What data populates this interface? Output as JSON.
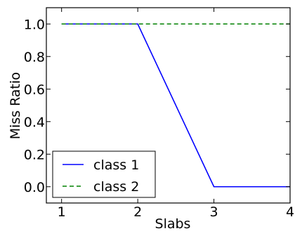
{
  "chart_data": {
    "type": "line",
    "title": "",
    "xlabel": "Slabs",
    "ylabel": "Miss Ratio",
    "xlim": [
      0.8,
      4.0
    ],
    "ylim": [
      -0.1,
      1.1
    ],
    "xticks": [
      1,
      2,
      3,
      4
    ],
    "xtick_labels": [
      "1",
      "2",
      "3",
      "4"
    ],
    "yticks": [
      0.0,
      0.2,
      0.4,
      0.6,
      0.8,
      1.0
    ],
    "ytick_labels": [
      "0.0",
      "0.2",
      "0.4",
      "0.6",
      "0.8",
      "1.0"
    ],
    "grid": false,
    "legend_position": "lower-left",
    "series": [
      {
        "name": "class 1",
        "color": "#0000ff",
        "style": "solid",
        "x": [
          1,
          2,
          3,
          4
        ],
        "values": [
          1.0,
          1.0,
          0.0,
          0.0
        ]
      },
      {
        "name": "class 2",
        "color": "#008000",
        "style": "dashed",
        "x": [
          1,
          2,
          3,
          4
        ],
        "values": [
          1.0,
          1.0,
          1.0,
          1.0
        ]
      }
    ]
  }
}
